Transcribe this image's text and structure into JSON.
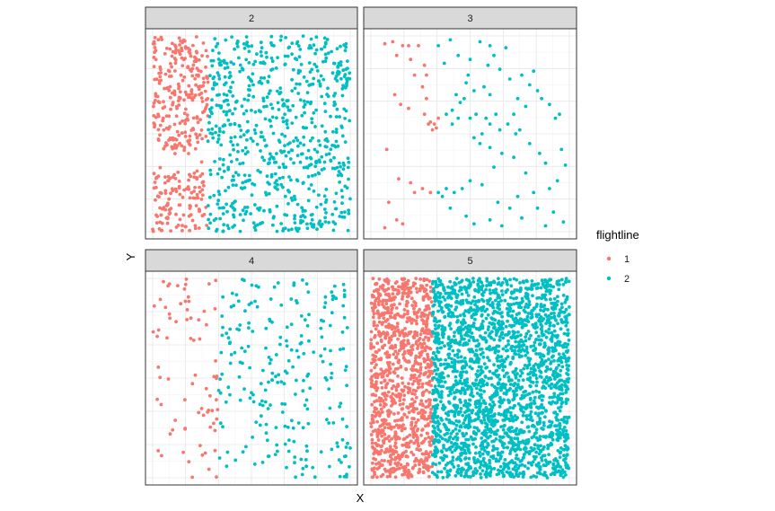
{
  "chart_data": {
    "type": "scatter",
    "xlabel": "X",
    "ylabel": "Y",
    "grid": true,
    "legend": {
      "title": "flightline",
      "placement": "right",
      "entries": [
        {
          "label": "1",
          "color": "#F8766D"
        },
        {
          "label": "2",
          "color": "#00BFC4"
        }
      ]
    },
    "panels": [
      {
        "strip": "2",
        "density": "high",
        "series": [
          {
            "name": "1",
            "color": "#F8766D",
            "x_range": [
              0.0,
              0.28
            ],
            "clusters": [
              [
                0.05,
                0.2,
                0.95,
                0.6
              ],
              [
                0.0,
                0.28,
                0.3,
                0.0
              ]
            ],
            "count": 420
          },
          {
            "name": "2",
            "color": "#00BFC4",
            "x_range": [
              0.28,
              1.0
            ],
            "count": 720
          }
        ]
      },
      {
        "strip": "3",
        "density": "low",
        "series": [
          {
            "name": "1",
            "color": "#F8766D",
            "points": [
              [
                0.07,
                0.96
              ],
              [
                0.11,
                0.97
              ],
              [
                0.13,
                0.9
              ],
              [
                0.16,
                0.95
              ],
              [
                0.2,
                0.88
              ],
              [
                0.24,
                0.95
              ],
              [
                0.27,
                0.85
              ],
              [
                0.28,
                0.8
              ],
              [
                0.26,
                0.74
              ],
              [
                0.28,
                0.68
              ],
              [
                0.27,
                0.6
              ],
              [
                0.29,
                0.55
              ],
              [
                0.31,
                0.52
              ],
              [
                0.32,
                0.55
              ],
              [
                0.34,
                0.58
              ],
              [
                0.3,
                0.56
              ],
              [
                0.33,
                0.53
              ],
              [
                0.12,
                0.7
              ],
              [
                0.15,
                0.65
              ],
              [
                0.19,
                0.63
              ],
              [
                0.08,
                0.42
              ],
              [
                0.14,
                0.27
              ],
              [
                0.2,
                0.25
              ],
              [
                0.22,
                0.2
              ],
              [
                0.26,
                0.22
              ],
              [
                0.3,
                0.2
              ],
              [
                0.09,
                0.15
              ],
              [
                0.13,
                0.06
              ],
              [
                0.16,
                0.04
              ],
              [
                0.07,
                0.02
              ],
              [
                0.19,
                0.95
              ],
              [
                0.22,
                0.8
              ]
            ]
          },
          {
            "name": "2",
            "color": "#00BFC4",
            "points": [
              [
                0.34,
                0.95
              ],
              [
                0.4,
                0.98
              ],
              [
                0.55,
                0.97
              ],
              [
                0.6,
                0.95
              ],
              [
                0.62,
                0.9
              ],
              [
                0.68,
                0.94
              ],
              [
                0.59,
                0.85
              ],
              [
                0.65,
                0.83
              ],
              [
                0.49,
                0.8
              ],
              [
                0.48,
                0.76
              ],
              [
                0.52,
                0.72
              ],
              [
                0.57,
                0.74
              ],
              [
                0.6,
                0.7
              ],
              [
                0.43,
                0.7
              ],
              [
                0.45,
                0.66
              ],
              [
                0.41,
                0.62
              ],
              [
                0.38,
                0.6
              ],
              [
                0.41,
                0.55
              ],
              [
                0.44,
                0.58
              ],
              [
                0.5,
                0.58
              ],
              [
                0.53,
                0.6
              ],
              [
                0.56,
                0.5
              ],
              [
                0.6,
                0.55
              ],
              [
                0.63,
                0.6
              ],
              [
                0.65,
                0.52
              ],
              [
                0.52,
                0.48
              ],
              [
                0.55,
                0.45
              ],
              [
                0.6,
                0.43
              ],
              [
                0.69,
                0.55
              ],
              [
                0.72,
                0.6
              ],
              [
                0.78,
                0.64
              ],
              [
                0.8,
                0.75
              ],
              [
                0.76,
                0.8
              ],
              [
                0.82,
                0.82
              ],
              [
                0.84,
                0.72
              ],
              [
                0.86,
                0.68
              ],
              [
                0.9,
                0.65
              ],
              [
                0.93,
                0.58
              ],
              [
                0.95,
                0.6
              ],
              [
                0.75,
                0.52
              ],
              [
                0.73,
                0.5
              ],
              [
                0.8,
                0.45
              ],
              [
                0.85,
                0.4
              ],
              [
                0.72,
                0.38
              ],
              [
                0.66,
                0.4
              ],
              [
                0.62,
                0.33
              ],
              [
                0.78,
                0.3
              ],
              [
                0.88,
                0.35
              ],
              [
                0.96,
                0.42
              ],
              [
                0.98,
                0.34
              ],
              [
                0.94,
                0.26
              ],
              [
                0.9,
                0.22
              ],
              [
                0.82,
                0.2
              ],
              [
                0.74,
                0.18
              ],
              [
                0.7,
                0.12
              ],
              [
                0.64,
                0.15
              ],
              [
                0.56,
                0.24
              ],
              [
                0.5,
                0.26
              ],
              [
                0.46,
                0.22
              ],
              [
                0.42,
                0.2
              ],
              [
                0.38,
                0.22
              ],
              [
                0.36,
                0.18
              ],
              [
                0.34,
                0.2
              ],
              [
                0.4,
                0.12
              ],
              [
                0.48,
                0.08
              ],
              [
                0.52,
                0.04
              ],
              [
                0.6,
                0.06
              ],
              [
                0.66,
                0.03
              ],
              [
                0.76,
                0.07
              ],
              [
                0.84,
                0.12
              ],
              [
                0.92,
                0.1
              ],
              [
                0.97,
                0.05
              ],
              [
                0.88,
                0.03
              ],
              [
                0.58,
                0.58
              ],
              [
                0.47,
                0.68
              ],
              [
                0.37,
                0.86
              ],
              [
                0.44,
                0.9
              ],
              [
                0.5,
                0.88
              ],
              [
                0.7,
                0.78
              ],
              [
                0.74,
                0.68
              ]
            ]
          }
        ]
      },
      {
        "strip": "4",
        "density": "medium",
        "series": [
          {
            "name": "1",
            "color": "#F8766D",
            "x_range": [
              0.0,
              0.33
            ],
            "count": 75
          },
          {
            "name": "2",
            "color": "#00BFC4",
            "x_range": [
              0.33,
              1.0
            ],
            "count": 240
          }
        ]
      },
      {
        "strip": "5",
        "density": "very-high",
        "series": [
          {
            "name": "1",
            "color": "#F8766D",
            "x_range": [
              0.0,
              0.31
            ],
            "count": 1000
          },
          {
            "name": "2",
            "color": "#00BFC4",
            "x_range": [
              0.31,
              1.0
            ],
            "count": 2300
          }
        ]
      }
    ]
  }
}
